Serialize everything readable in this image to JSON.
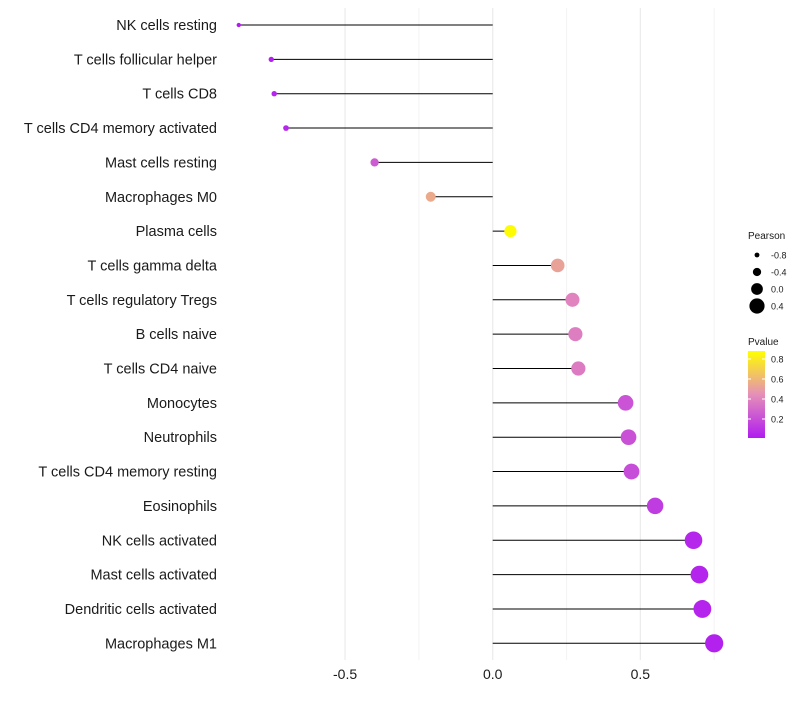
{
  "chart_data": {
    "type": "lollipop",
    "title": "",
    "xlabel": "",
    "ylabel": "",
    "xlim": [
      -0.91,
      0.79
    ],
    "x_ticks": [
      -0.5,
      0.0,
      0.5
    ],
    "x_tick_labels": [
      "-0.5",
      "0.0",
      "0.5"
    ],
    "grid": true,
    "categories": [
      "NK cells resting",
      "T cells follicular helper",
      "T cells CD8",
      "T cells CD4 memory activated",
      "Mast cells resting",
      "Macrophages M0",
      "Plasma cells",
      "T cells gamma delta",
      "T cells regulatory  Tregs ",
      "B cells naive",
      "T cells CD4 naive",
      "Monocytes",
      "Neutrophils",
      "T cells CD4 memory resting",
      "Eosinophils",
      "NK cells activated",
      "Mast cells activated",
      "Dendritic cells activated",
      "Macrophages M1"
    ],
    "pearson": [
      -0.86,
      -0.75,
      -0.74,
      -0.7,
      -0.4,
      -0.21,
      0.06,
      0.22,
      0.27,
      0.28,
      0.29,
      0.45,
      0.46,
      0.47,
      0.55,
      0.68,
      0.7,
      0.71,
      0.75
    ],
    "pvalue": [
      0.01,
      0.03,
      0.04,
      0.05,
      0.25,
      0.55,
      0.87,
      0.52,
      0.4,
      0.38,
      0.37,
      0.22,
      0.21,
      0.2,
      0.13,
      0.05,
      0.04,
      0.04,
      0.03
    ],
    "size_legend": {
      "title": "Pearson",
      "values": [
        -0.8,
        -0.4,
        0.0,
        0.4
      ],
      "labels": [
        "-0.8",
        "-0.4",
        "0.0",
        "0.4"
      ]
    },
    "color_legend": {
      "title": "Pvalue",
      "range": [
        0.01,
        0.88
      ],
      "ticks": [
        0.2,
        0.4,
        0.6,
        0.8
      ],
      "labels": [
        "0.2",
        "0.4",
        "0.6",
        "0.8"
      ],
      "low_color": "#b01cf0",
      "mid_color": "#e58fb8",
      "high_color": "#ffff00"
    },
    "stem_color": "#000000",
    "grid_color": "#ebebeb"
  }
}
